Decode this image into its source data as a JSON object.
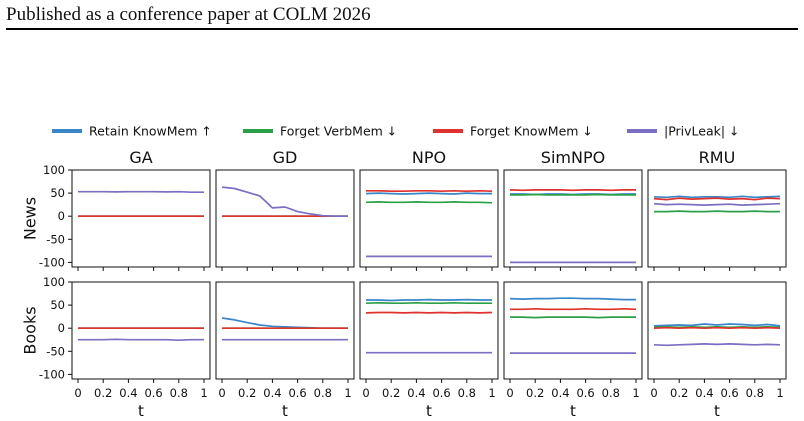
{
  "header": {
    "text": "Published as a conference paper at COLM 2026"
  },
  "chart_data": {
    "type": "line",
    "legend_placement": "top",
    "grid": false,
    "legend": [
      {
        "name": "Retain KnowMem ↑",
        "color": "#3a86c8"
      },
      {
        "name": "Forget VerbMem ↓",
        "color": "#2ca048"
      },
      {
        "name": "Forget KnowMem ↓",
        "color": "#e0322c"
      },
      {
        "name": "|PrivLeak| ↓",
        "color": "#7b6fc4"
      }
    ],
    "columns": [
      "GA",
      "GD",
      "NPO",
      "SimNPO",
      "RMU"
    ],
    "rows": [
      "News",
      "Books"
    ],
    "xlabel": "t",
    "xlim": [
      0,
      1
    ],
    "ylim": [
      -110,
      100
    ],
    "xticks": [
      "0",
      "0.2",
      "0.4",
      "0.6",
      "0.8",
      "1"
    ],
    "yticks": [
      "100",
      "50",
      "0",
      "-50",
      "-100"
    ],
    "x": [
      0,
      0.1,
      0.2,
      0.3,
      0.4,
      0.5,
      0.6,
      0.7,
      0.8,
      0.9,
      1
    ],
    "panels": [
      {
        "row": "News",
        "col": "GA",
        "series": [
          {
            "name": "Retain KnowMem ↑",
            "values": [
              0,
              0,
              0,
              0,
              0,
              0,
              0,
              0,
              0,
              0,
              0
            ]
          },
          {
            "name": "Forget VerbMem ↓",
            "values": [
              0,
              0,
              0,
              0,
              0,
              0,
              0,
              0,
              0,
              0,
              0
            ]
          },
          {
            "name": "Forget KnowMem ↓",
            "values": [
              0,
              0,
              0,
              0,
              0,
              0,
              0,
              0,
              0,
              0,
              0
            ]
          },
          {
            "name": "|PrivLeak| ↓",
            "values": [
              53,
              53,
              53,
              52.5,
              53,
              53,
              53,
              52.5,
              53,
              52,
              52
            ]
          }
        ]
      },
      {
        "row": "News",
        "col": "GD",
        "series": [
          {
            "name": "Retain KnowMem ↑",
            "values": [
              0,
              0,
              0,
              0,
              0,
              0,
              0,
              0,
              0,
              0,
              0
            ]
          },
          {
            "name": "Forget VerbMem ↓",
            "values": [
              0,
              0,
              0,
              0,
              0,
              0,
              0,
              0,
              0,
              0,
              0
            ]
          },
          {
            "name": "Forget KnowMem ↓",
            "values": [
              0,
              0,
              0,
              0,
              0,
              0,
              0,
              0,
              0,
              0,
              0
            ]
          },
          {
            "name": "|PrivLeak| ↓",
            "values": [
              63,
              60,
              52,
              44,
              18,
              20,
              10,
              5,
              1,
              0,
              0
            ]
          }
        ]
      },
      {
        "row": "News",
        "col": "NPO",
        "series": [
          {
            "name": "Retain KnowMem ↑",
            "values": [
              49,
              50,
              49,
              48,
              49,
              50,
              49,
              48,
              50,
              49,
              49
            ]
          },
          {
            "name": "Forget VerbMem ↓",
            "values": [
              30,
              31,
              30,
              30,
              31,
              30,
              30,
              31,
              30,
              30,
              29
            ]
          },
          {
            "name": "Forget KnowMem ↓",
            "values": [
              55,
              55,
              54,
              54,
              55,
              55,
              54,
              55,
              54,
              55,
              54
            ]
          },
          {
            "name": "|PrivLeak| ↓",
            "values": [
              -87,
              -87,
              -87,
              -87,
              -87,
              -87,
              -87,
              -87,
              -87,
              -87,
              -87
            ]
          }
        ]
      },
      {
        "row": "News",
        "col": "SimNPO",
        "series": [
          {
            "name": "Retain KnowMem ↑",
            "values": [
              48,
              48,
              47,
              48,
              48,
              47,
              48,
              48,
              47,
              48,
              48
            ]
          },
          {
            "name": "Forget VerbMem ↓",
            "values": [
              46,
              46,
              47,
              46,
              46,
              46,
              46,
              47,
              46,
              46,
              46
            ]
          },
          {
            "name": "Forget KnowMem ↓",
            "values": [
              57,
              56,
              57,
              57,
              57,
              56,
              57,
              57,
              56,
              57,
              57
            ]
          },
          {
            "name": "|PrivLeak| ↓",
            "values": [
              -100,
              -100,
              -100,
              -100,
              -100,
              -100,
              -100,
              -100,
              -100,
              -100,
              -100
            ]
          }
        ]
      },
      {
        "row": "News",
        "col": "RMU",
        "series": [
          {
            "name": "Retain KnowMem ↑",
            "values": [
              42,
              41,
              43,
              41,
              42,
              42,
              41,
              43,
              41,
              42,
              43
            ]
          },
          {
            "name": "Forget VerbMem ↓",
            "values": [
              10,
              10,
              11,
              10,
              10,
              11,
              10,
              10,
              11,
              10,
              10
            ]
          },
          {
            "name": "Forget KnowMem ↓",
            "values": [
              38,
              36,
              39,
              37,
              38,
              39,
              37,
              38,
              36,
              39,
              38
            ]
          },
          {
            "name": "|PrivLeak| ↓",
            "values": [
              27,
              25,
              26,
              25,
              24,
              25,
              26,
              24,
              25,
              26,
              27
            ]
          }
        ]
      },
      {
        "row": "Books",
        "col": "GA",
        "series": [
          {
            "name": "Retain KnowMem ↑",
            "values": [
              0,
              0,
              0,
              0,
              0,
              0,
              0,
              0,
              0,
              0,
              0
            ]
          },
          {
            "name": "Forget VerbMem ↓",
            "values": [
              0,
              0,
              0,
              0,
              0,
              0,
              0,
              0,
              0,
              0,
              0
            ]
          },
          {
            "name": "Forget KnowMem ↓",
            "values": [
              0,
              0,
              0,
              0,
              0,
              0,
              0,
              0,
              0,
              0,
              0
            ]
          },
          {
            "name": "|PrivLeak| ↓",
            "values": [
              -25,
              -25,
              -25,
              -24,
              -25,
              -25,
              -25,
              -25,
              -26,
              -25,
              -25
            ]
          }
        ]
      },
      {
        "row": "Books",
        "col": "GD",
        "series": [
          {
            "name": "Retain KnowMem ↑",
            "values": [
              22,
              18,
              12,
              7,
              4,
              3,
              2,
              1,
              0,
              0,
              0
            ]
          },
          {
            "name": "Forget VerbMem ↓",
            "values": [
              0,
              0,
              0,
              0,
              0,
              0,
              0,
              0,
              0,
              0,
              0
            ]
          },
          {
            "name": "Forget KnowMem ↓",
            "values": [
              0,
              0,
              0,
              0,
              0,
              0,
              0,
              0,
              0,
              0,
              0
            ]
          },
          {
            "name": "|PrivLeak| ↓",
            "values": [
              -25,
              -25,
              -25,
              -25,
              -25,
              -25,
              -25,
              -25,
              -25,
              -25,
              -25
            ]
          }
        ]
      },
      {
        "row": "Books",
        "col": "NPO",
        "series": [
          {
            "name": "Retain KnowMem ↑",
            "values": [
              61,
              61,
              60,
              61,
              61,
              62,
              61,
              61,
              62,
              61,
              61
            ]
          },
          {
            "name": "Forget VerbMem ↓",
            "values": [
              54,
              55,
              54,
              54,
              55,
              54,
              54,
              55,
              54,
              54,
              54
            ]
          },
          {
            "name": "Forget KnowMem ↓",
            "values": [
              33,
              34,
              34,
              33,
              34,
              33,
              34,
              33,
              34,
              33,
              34
            ]
          },
          {
            "name": "|PrivLeak| ↓",
            "values": [
              -53,
              -53,
              -53,
              -53,
              -53,
              -53,
              -53,
              -53,
              -53,
              -53,
              -53
            ]
          }
        ]
      },
      {
        "row": "Books",
        "col": "SimNPO",
        "series": [
          {
            "name": "Retain KnowMem ↑",
            "values": [
              64,
              63,
              64,
              64,
              65,
              65,
              64,
              64,
              63,
              62,
              62
            ]
          },
          {
            "name": "Forget VerbMem ↓",
            "values": [
              24,
              24,
              23,
              24,
              24,
              24,
              24,
              23,
              24,
              24,
              24
            ]
          },
          {
            "name": "Forget KnowMem ↓",
            "values": [
              41,
              41,
              42,
              41,
              41,
              41,
              42,
              41,
              41,
              42,
              41
            ]
          },
          {
            "name": "|PrivLeak| ↓",
            "values": [
              -54,
              -54,
              -54,
              -54,
              -54,
              -54,
              -54,
              -54,
              -54,
              -54,
              -54
            ]
          }
        ]
      },
      {
        "row": "Books",
        "col": "RMU",
        "series": [
          {
            "name": "Retain KnowMem ↑",
            "values": [
              5,
              6,
              7,
              6,
              9,
              7,
              9,
              8,
              6,
              8,
              5
            ]
          },
          {
            "name": "Forget VerbMem ↓",
            "values": [
              2,
              3,
              2,
              3,
              2,
              3,
              2,
              3,
              2,
              3,
              2
            ]
          },
          {
            "name": "Forget KnowMem ↓",
            "values": [
              0,
              1,
              0,
              1,
              0,
              1,
              0,
              1,
              0,
              1,
              0
            ]
          },
          {
            "name": "|PrivLeak| ↓",
            "values": [
              -36,
              -37,
              -36,
              -35,
              -34,
              -35,
              -34,
              -35,
              -36,
              -35,
              -36
            ]
          }
        ]
      }
    ]
  }
}
